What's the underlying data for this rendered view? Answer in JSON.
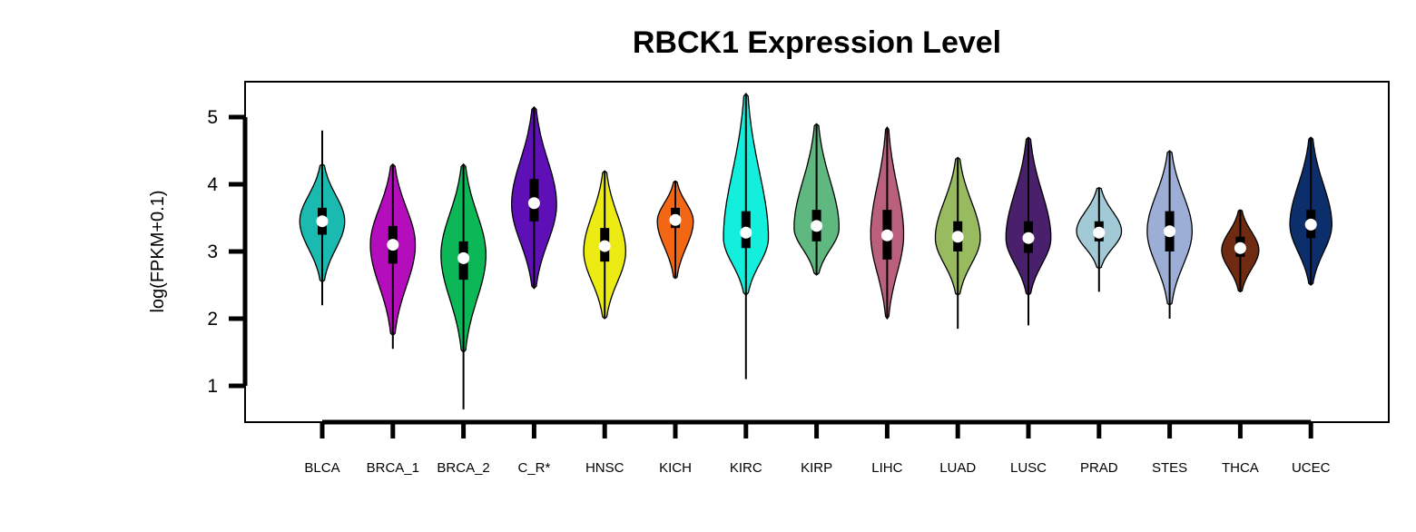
{
  "chart_data": {
    "type": "violin",
    "title": "RBCK1 Expression Level",
    "ylabel": "log(FPKM+0.1)",
    "ylim": [
      0.5,
      5.5
    ],
    "yticks": [
      1,
      2,
      3,
      4,
      5
    ],
    "grid": false,
    "categories": [
      "BLCA",
      "BRCA_1",
      "BRCA_2",
      "C_R*",
      "HNSC",
      "KICH",
      "KIRC",
      "KIRP",
      "LIHC",
      "LUAD",
      "LUSC",
      "PRAD",
      "STES",
      "THCA",
      "UCEC"
    ],
    "colors": [
      "#1ABAB0",
      "#B40DBB",
      "#0BB757",
      "#5E10B6",
      "#ECEC14",
      "#F26614",
      "#14EEDC",
      "#5FB87F",
      "#BB607C",
      "#98BB60",
      "#4A1F6B",
      "#A2C9D6",
      "#9DAED6",
      "#6E2B12",
      "#0C2F6C"
    ],
    "violins": [
      {
        "min": 2.55,
        "max": 4.3,
        "q1": 3.25,
        "median": 3.45,
        "q3": 3.65,
        "wlo": 2.2,
        "whi": 4.8,
        "mode": 3.45,
        "width": 0.75
      },
      {
        "min": 1.75,
        "max": 4.3,
        "q1": 2.82,
        "median": 3.1,
        "q3": 3.38,
        "wlo": 1.55,
        "whi": 4.3,
        "mode": 3.1,
        "width": 0.75
      },
      {
        "min": 1.5,
        "max": 4.3,
        "q1": 2.58,
        "median": 2.9,
        "q3": 3.15,
        "wlo": 0.65,
        "whi": 4.3,
        "mode": 2.95,
        "width": 0.75
      },
      {
        "min": 2.45,
        "max": 5.15,
        "q1": 3.45,
        "median": 3.72,
        "q3": 4.08,
        "wlo": 2.45,
        "whi": 5.15,
        "mode": 3.7,
        "width": 0.75
      },
      {
        "min": 2.0,
        "max": 4.2,
        "q1": 2.85,
        "median": 3.08,
        "q3": 3.35,
        "wlo": 2.0,
        "whi": 4.2,
        "mode": 3.0,
        "width": 0.7
      },
      {
        "min": 2.6,
        "max": 4.05,
        "q1": 3.35,
        "median": 3.47,
        "q3": 3.65,
        "wlo": 2.6,
        "whi": 4.05,
        "mode": 3.45,
        "width": 0.6
      },
      {
        "min": 2.35,
        "max": 5.35,
        "q1": 3.05,
        "median": 3.28,
        "q3": 3.6,
        "wlo": 1.1,
        "whi": 5.35,
        "mode": 3.2,
        "width": 0.75
      },
      {
        "min": 2.65,
        "max": 4.9,
        "q1": 3.15,
        "median": 3.38,
        "q3": 3.62,
        "wlo": 2.65,
        "whi": 4.9,
        "mode": 3.35,
        "width": 0.75
      },
      {
        "min": 2.0,
        "max": 4.85,
        "q1": 2.88,
        "median": 3.24,
        "q3": 3.62,
        "wlo": 2.0,
        "whi": 4.85,
        "mode": 3.25,
        "width": 0.55
      },
      {
        "min": 2.35,
        "max": 4.4,
        "q1": 3.0,
        "median": 3.22,
        "q3": 3.45,
        "wlo": 1.85,
        "whi": 4.4,
        "mode": 3.2,
        "width": 0.75
      },
      {
        "min": 2.35,
        "max": 4.7,
        "q1": 2.98,
        "median": 3.2,
        "q3": 3.45,
        "wlo": 1.9,
        "whi": 4.7,
        "mode": 3.2,
        "width": 0.75
      },
      {
        "min": 2.75,
        "max": 3.95,
        "q1": 3.15,
        "median": 3.28,
        "q3": 3.45,
        "wlo": 2.4,
        "whi": 3.95,
        "mode": 3.3,
        "width": 0.75
      },
      {
        "min": 2.2,
        "max": 4.5,
        "q1": 3.0,
        "median": 3.3,
        "q3": 3.6,
        "wlo": 2.0,
        "whi": 4.5,
        "mode": 3.3,
        "width": 0.75
      },
      {
        "min": 2.4,
        "max": 3.62,
        "q1": 2.92,
        "median": 3.05,
        "q3": 3.22,
        "wlo": 2.4,
        "whi": 3.62,
        "mode": 3.02,
        "width": 0.62
      },
      {
        "min": 2.5,
        "max": 4.7,
        "q1": 3.2,
        "median": 3.4,
        "q3": 3.62,
        "wlo": 2.5,
        "whi": 4.7,
        "mode": 3.4,
        "width": 0.7
      }
    ]
  }
}
